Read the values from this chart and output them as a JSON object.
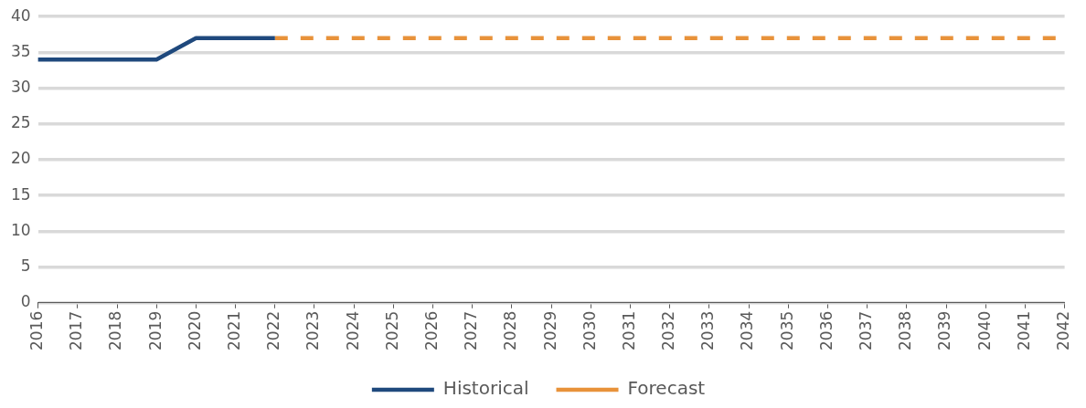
{
  "chart_data": {
    "type": "line",
    "categories": [
      "2016",
      "2017",
      "2018",
      "2019",
      "2020",
      "2021",
      "2022",
      "2023",
      "2024",
      "2025",
      "2026",
      "2027",
      "2028",
      "2029",
      "2030",
      "2031",
      "2032",
      "2033",
      "2034",
      "2035",
      "2036",
      "2037",
      "2038",
      "2039",
      "2040",
      "2041",
      "2042"
    ],
    "series": [
      {
        "name": "Historical",
        "color": "#1f497d",
        "line_style": "solid",
        "values": [
          34,
          34,
          34,
          34,
          37,
          37,
          37,
          null,
          null,
          null,
          null,
          null,
          null,
          null,
          null,
          null,
          null,
          null,
          null,
          null,
          null,
          null,
          null,
          null,
          null,
          null,
          null
        ]
      },
      {
        "name": "Forecast",
        "color": "#e8923a",
        "line_style": "dashed",
        "values": [
          null,
          null,
          null,
          null,
          null,
          null,
          37,
          37,
          37,
          37,
          37,
          37,
          37,
          37,
          37,
          37,
          37,
          37,
          37,
          37,
          37,
          37,
          37,
          37,
          37,
          37,
          37
        ]
      }
    ],
    "ylim": [
      0,
      40
    ],
    "yticks": [
      0,
      5,
      10,
      15,
      20,
      25,
      30,
      35,
      40
    ],
    "grid": "y",
    "legend": "bottom",
    "marker": "none"
  }
}
